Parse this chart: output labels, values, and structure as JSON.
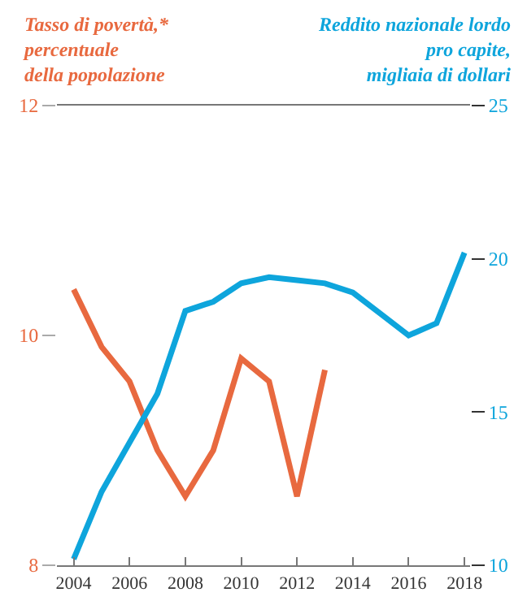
{
  "chart_data": {
    "type": "line",
    "ylabel": "Tasso di povertà,*\npercentuale\ndella popolazione",
    "y2label": "Reddito nazionale lordo\npro capite,\nmigliaia di dollari",
    "series": [
      {
        "color": "#e8693f",
        "x": [
          2004,
          2005,
          2006,
          2007,
          2008,
          2009,
          2010,
          2011,
          2012,
          2013
        ],
        "values": [
          10.4,
          9.9,
          9.6,
          9.0,
          8.6,
          9.0,
          9.8,
          9.6,
          8.6,
          9.7
        ]
      },
      {
        "color": "#0ea5dc",
        "axis": "y2",
        "x": [
          2004,
          2005,
          2006,
          2007,
          2008,
          2009,
          2010,
          2011,
          2012,
          2013,
          2014,
          2015,
          2016,
          2017,
          2018
        ],
        "values": [
          10.2,
          12.4,
          14.0,
          15.6,
          18.3,
          18.6,
          19.2,
          19.4,
          19.3,
          19.2,
          18.9,
          18.2,
          17.5,
          17.9,
          20.2
        ]
      }
    ],
    "xlim": [
      2003.4,
      2018.2
    ],
    "xticks": [
      2004,
      2006,
      2008,
      2010,
      2012,
      2014,
      2016,
      2018
    ],
    "ylim": [
      8,
      12
    ],
    "yticks": [
      8,
      10,
      12
    ],
    "y2lim": [
      10,
      25
    ],
    "y2ticks": [
      10,
      15,
      20,
      25
    ],
    "marker": "none",
    "line_style": "solid"
  }
}
